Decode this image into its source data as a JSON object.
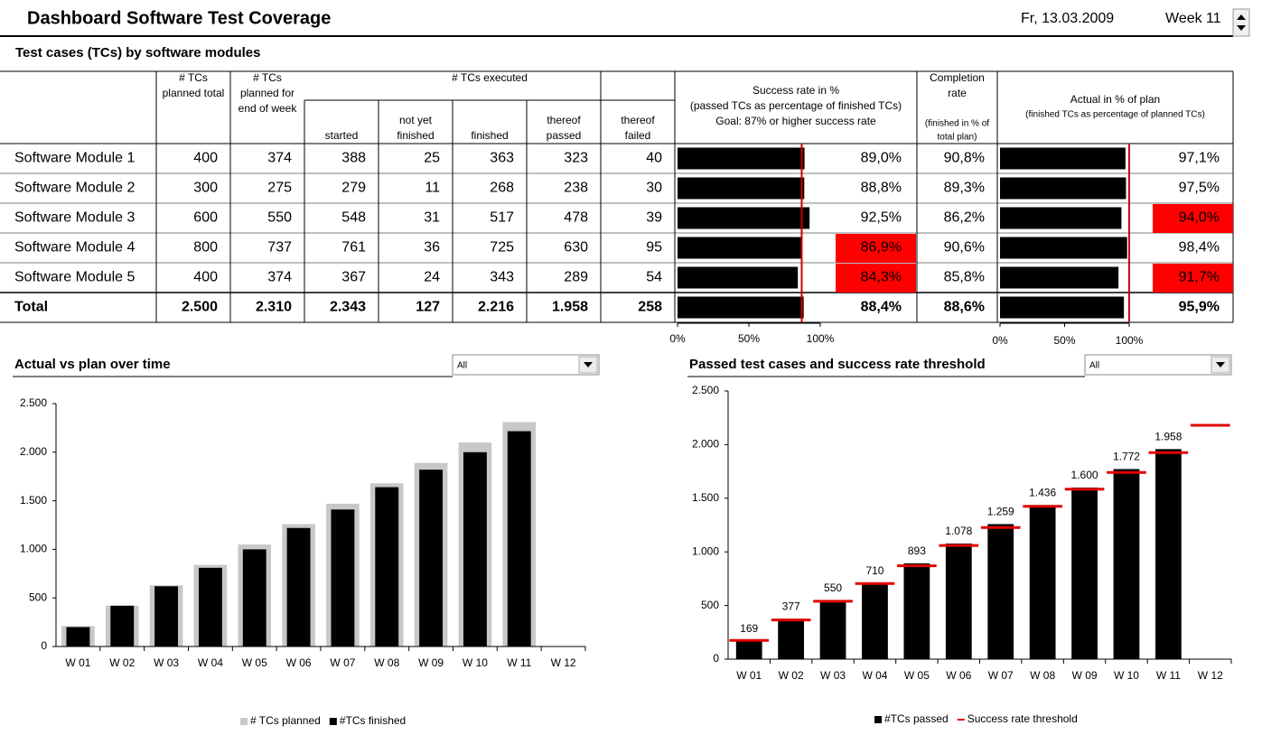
{
  "header": {
    "title": "Dashboard Software Test Coverage",
    "date": "Fr, 13.03.2009",
    "week": "Week 11"
  },
  "table": {
    "title": "Test cases (TCs) by software modules",
    "group_header": "# TCs executed",
    "header_cells": [
      [
        "# TCs",
        "planned total"
      ],
      [
        "# TCs",
        "planned for",
        "end of week"
      ],
      [
        "started"
      ],
      [
        "not yet",
        "finished"
      ],
      [
        "finished"
      ],
      [
        "thereof",
        "passed"
      ],
      [
        "thereof",
        "failed"
      ],
      [
        "Success rate in %",
        "(passed TCs as percentage of finished TCs)",
        "Goal: 87% or higher success rate"
      ],
      [
        "Completion",
        "rate"
      ],
      [
        "Actual in % of plan"
      ]
    ],
    "completion_note": [
      "(finished in % of",
      "total plan)"
    ],
    "actual_note": "(finished TCs as percentage of planned TCs)",
    "rows": [
      [
        "Software Module 1",
        "400",
        "374",
        "388",
        "25",
        "363",
        "323",
        "40",
        "90,8%"
      ],
      [
        "Software Module 2",
        "300",
        "275",
        "279",
        "11",
        "268",
        "238",
        "30",
        "89,3%"
      ],
      [
        "Software Module 3",
        "600",
        "550",
        "548",
        "31",
        "517",
        "478",
        "39",
        "86,2%"
      ],
      [
        "Software Module 4",
        "800",
        "737",
        "761",
        "36",
        "725",
        "630",
        "95",
        "90,6%"
      ],
      [
        "Software Module 5",
        "400",
        "374",
        "367",
        "24",
        "343",
        "289",
        "54",
        "85,8%"
      ]
    ],
    "total": [
      "Total",
      "2.500",
      "2.310",
      "2.343",
      "127",
      "2.216",
      "1.958",
      "258",
      "88,6%"
    ]
  },
  "chart_data": [
    {
      "type": "hbar",
      "values": [
        89.0,
        88.8,
        92.5,
        86.9,
        84.3,
        88.4
      ],
      "value_labels": [
        "89,0%",
        "88,8%",
        "92,5%",
        "86,9%",
        "84,3%",
        "88,4%"
      ],
      "xlim": [
        0,
        100
      ],
      "xticks": [
        {
          "value": 0,
          "label": "0%"
        },
        {
          "value": 50,
          "label": "50%"
        },
        {
          "value": 100,
          "label": "100%"
        }
      ],
      "color": "#000000",
      "reference_line": 87,
      "reference_color": "#cc0000",
      "highlight_below": 87,
      "highlight_color": "#ff0000"
    },
    {
      "type": "hbar",
      "values": [
        97.1,
        97.5,
        94.0,
        98.4,
        91.7,
        95.9
      ],
      "value_labels": [
        "97,1%",
        "97,5%",
        "94,0%",
        "98,4%",
        "91,7%",
        "95,9%"
      ],
      "xlim": [
        0,
        100
      ],
      "xticks": [
        {
          "value": 0,
          "label": "0%"
        },
        {
          "value": 50,
          "label": "50%"
        },
        {
          "value": 100,
          "label": "100%"
        }
      ],
      "color": "#000000",
      "reference_line": 100,
      "reference_color": "#cc0000",
      "highlight_below": 95,
      "highlight_color": "#ff0000"
    },
    {
      "type": "bar",
      "title": "Actual vs plan over time",
      "filter": "All",
      "categories": [
        "W 01",
        "W 02",
        "W 03",
        "W 04",
        "W 05",
        "W 06",
        "W 07",
        "W 08",
        "W 09",
        "W 10",
        "W 11",
        "W 12"
      ],
      "series": [
        {
          "name": "# TCs planned",
          "color": "#c8c8c8",
          "type": "bar",
          "values": [
            210,
            420,
            630,
            840,
            1050,
            1260,
            1470,
            1680,
            1890,
            2100,
            2310,
            null
          ]
        },
        {
          "name": "#TCs finished",
          "color": "#000000",
          "type": "bar",
          "values": [
            200,
            420,
            620,
            810,
            1000,
            1220,
            1410,
            1640,
            1820,
            2000,
            2216,
            null
          ]
        }
      ],
      "ylim": [
        0,
        2500
      ],
      "yticks": [
        0,
        500,
        {
          "value": 1000,
          "label": "1.000"
        },
        {
          "value": 1500,
          "label": "1.500"
        },
        {
          "value": 2000,
          "label": "2.000"
        },
        {
          "value": 2500,
          "label": "2.500"
        }
      ],
      "grid": false,
      "legend": "bottom"
    },
    {
      "type": "bar",
      "title": "Passed test cases and success rate threshold",
      "filter": "All",
      "categories": [
        "W 01",
        "W 02",
        "W 03",
        "W 04",
        "W 05",
        "W 06",
        "W 07",
        "W 08",
        "W 09",
        "W 10",
        "W 11",
        "W 12"
      ],
      "series": [
        {
          "name": "#TCs passed",
          "color": "#000000",
          "type": "bar",
          "values": [
            169,
            377,
            550,
            710,
            893,
            1078,
            1259,
            1436,
            1600,
            1772,
            1958,
            null
          ],
          "value_labels": [
            "169",
            "377",
            "550",
            "710",
            "893",
            "1.078",
            "1.259",
            "1.436",
            "1.600",
            "1.772",
            "1.958",
            null
          ]
        },
        {
          "name": "Success rate threshold",
          "color": "#e00000",
          "type": "dash",
          "values": [
            175,
            365,
            540,
            705,
            870,
            1060,
            1227,
            1425,
            1585,
            1740,
            1925,
            2180
          ]
        }
      ],
      "ylim": [
        0,
        2500
      ],
      "yticks": [
        0,
        500,
        {
          "value": 1000,
          "label": "1.000"
        },
        {
          "value": 1500,
          "label": "1.500"
        },
        {
          "value": 2000,
          "label": "2.000"
        },
        {
          "value": 2500,
          "label": "2.500"
        }
      ],
      "grid": false,
      "legend": "bottom"
    }
  ]
}
